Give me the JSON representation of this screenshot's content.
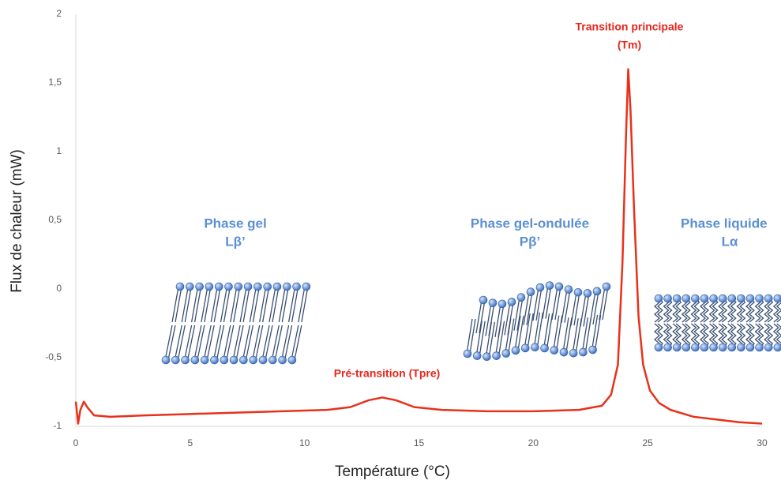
{
  "chart_data": {
    "type": "line",
    "x_label": "Température (°C)",
    "y_label": "Flux de chaleur (mW)",
    "xlim": [
      0,
      30
    ],
    "xticks": [
      0,
      5,
      10,
      15,
      20,
      25,
      30
    ],
    "ylim": [
      -1,
      2
    ],
    "yticks": [
      -1,
      {
        "value": -0.5,
        "label": "-0,5"
      },
      0,
      {
        "value": 0.5,
        "label": "0,5"
      },
      1,
      {
        "value": 1.5,
        "label": "1,5"
      },
      2
    ],
    "grid": false,
    "annotations": [
      "Transition principale",
      "(Tm)",
      "Pré-transition (Tpre)",
      "Phase gel",
      "Lβ’",
      "Phase gel-ondulée",
      "Pβ’",
      "Phase liquide",
      "Lα"
    ],
    "x": [
      0,
      0.1,
      0.2,
      0.35,
      0.5,
      0.8,
      1.5,
      3,
      5,
      7,
      9,
      11,
      12,
      12.8,
      13.4,
      14,
      14.8,
      16,
      18,
      20,
      22,
      23,
      23.4,
      23.7,
      23.9,
      24.05,
      24.15,
      24.25,
      24.4,
      24.6,
      24.8,
      25.1,
      25.5,
      26,
      27,
      28,
      29,
      30
    ],
    "series": [
      {
        "color": "#e8311a",
        "values": [
          -0.82,
          -0.98,
          -0.88,
          -0.82,
          -0.86,
          -0.92,
          -0.93,
          -0.92,
          -0.91,
          -0.9,
          -0.89,
          -0.88,
          -0.86,
          -0.81,
          -0.79,
          -0.81,
          -0.86,
          -0.88,
          -0.89,
          -0.89,
          -0.88,
          -0.85,
          -0.77,
          -0.55,
          0.2,
          1.1,
          1.6,
          1.3,
          0.6,
          -0.2,
          -0.55,
          -0.74,
          -0.83,
          -0.88,
          -0.93,
          -0.95,
          -0.97,
          -0.98
        ]
      }
    ]
  }
}
